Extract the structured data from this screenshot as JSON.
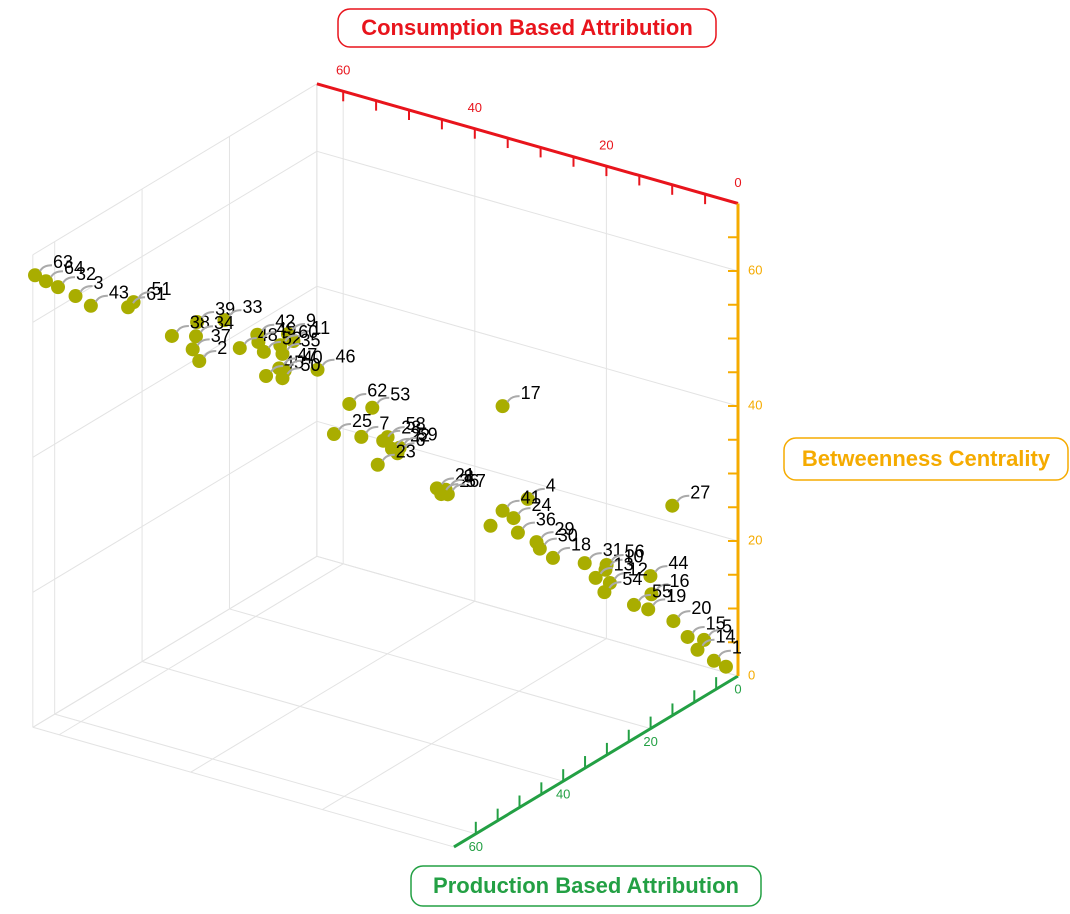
{
  "chart_data": {
    "type": "scatter3d",
    "x_label": "Consumption Based Attribution",
    "y_label": "Production Based Attribution",
    "z_label": "Betweenness Centrality",
    "x_color": "#e8141c",
    "y_color": "#23a044",
    "z_color": "#f5ab00",
    "color": "#a9ad00",
    "xlim": [
      0,
      64
    ],
    "ylim": [
      0,
      65
    ],
    "zlim": [
      0,
      70
    ],
    "xticks": [
      0,
      20,
      40,
      60
    ],
    "yticks": [
      0,
      20,
      40,
      60
    ],
    "zticks": [
      0,
      20,
      40,
      60
    ],
    "xminorticks": [
      5,
      10,
      15,
      20,
      25,
      30,
      35,
      40,
      45,
      50,
      55,
      60
    ],
    "yminorticks": [
      5,
      10,
      15,
      20,
      25,
      30,
      35,
      40,
      45,
      50,
      55,
      60
    ],
    "zminorticks": [
      5,
      10,
      15,
      20,
      25,
      30,
      35,
      40,
      45,
      50,
      55,
      60,
      65
    ],
    "labels": [
      "63",
      "64",
      "32",
      "3",
      "43",
      "61",
      "51",
      "38",
      "39",
      "34",
      "37",
      "2",
      "33",
      "48",
      "42",
      "49",
      "52",
      "35",
      "9",
      "11",
      "60",
      "45",
      "47",
      "40",
      "50",
      "46",
      "62",
      "53",
      "25",
      "7",
      "58",
      "28",
      "22",
      "6",
      "59",
      "23",
      "17",
      "21",
      "26",
      "57",
      "8",
      "4",
      "41",
      "24",
      null,
      "36",
      "29",
      "30",
      "18",
      "31",
      "56",
      "10",
      "13",
      "12",
      "54",
      "44",
      "16",
      "55",
      "19",
      "20",
      "27",
      "15",
      "5",
      "14",
      "1",
      null
    ],
    "x": [
      64.2,
      63.2,
      62.1,
      60.5,
      59.1,
      55.7,
      55.2,
      51.7,
      49.4,
      49.5,
      49.8,
      49.2,
      46.9,
      45.5,
      43.9,
      43.8,
      43.3,
      41.6,
      41.1,
      40.6,
      41.8,
      43.1,
      41.9,
      41.4,
      41.6,
      38.4,
      35.5,
      33.4,
      36.9,
      34.4,
      32.0,
      32.4,
      31.6,
      31.1,
      30.9,
      32.9,
      21.5,
      27.5,
      27.1,
      26.5,
      26.7,
      19.2,
      21.5,
      20.5,
      22.6,
      20.1,
      18.4,
      18.1,
      16.9,
      14.0,
      12.0,
      12.1,
      13.0,
      11.7,
      12.2,
      8.0,
      7.9,
      9.5,
      8.2,
      5.9,
      6.0,
      4.6,
      3.1,
      3.7,
      2.2,
      1.1
    ],
    "y": [
      64.2,
      63.2,
      62.1,
      60.5,
      59.1,
      55.7,
      55.2,
      51.7,
      49.4,
      49.5,
      49.8,
      49.2,
      46.9,
      45.5,
      43.9,
      43.8,
      43.3,
      41.6,
      41.1,
      40.6,
      41.8,
      43.1,
      41.9,
      41.4,
      41.6,
      38.4,
      35.5,
      33.4,
      36.9,
      34.4,
      32.0,
      32.4,
      31.6,
      31.1,
      30.9,
      32.9,
      21.5,
      27.5,
      27.1,
      26.5,
      26.7,
      19.2,
      21.5,
      20.5,
      22.6,
      20.1,
      18.4,
      18.1,
      16.9,
      14.0,
      12.0,
      12.1,
      13.0,
      11.7,
      12.2,
      8.0,
      7.9,
      9.5,
      8.2,
      5.9,
      6.0,
      4.6,
      3.1,
      3.7,
      2.2,
      1.1
    ],
    "z": [
      66.6,
      65.6,
      64.6,
      63.1,
      61.5,
      60.9,
      61.6,
      56.2,
      58.0,
      55.9,
      54.0,
      52.2,
      58.0,
      53.7,
      55.5,
      54.4,
      52.9,
      52.4,
      55.3,
      54.2,
      53.7,
      49.3,
      50.3,
      49.9,
      48.8,
      49.7,
      44.3,
      43.5,
      40.0,
      39.3,
      39.0,
      38.5,
      37.2,
      36.5,
      37.3,
      35.0,
      42.4,
      30.9,
      30.0,
      29.9,
      30.6,
      28.4,
      26.9,
      25.7,
      24.8,
      23.5,
      21.9,
      20.9,
      19.4,
      18.3,
      17.8,
      17.1,
      16.0,
      15.1,
      13.8,
      15.7,
      13.0,
      11.6,
      10.8,
      8.8,
      25.9,
      6.3,
      5.7,
      4.3,
      2.5,
      1.5
    ]
  }
}
